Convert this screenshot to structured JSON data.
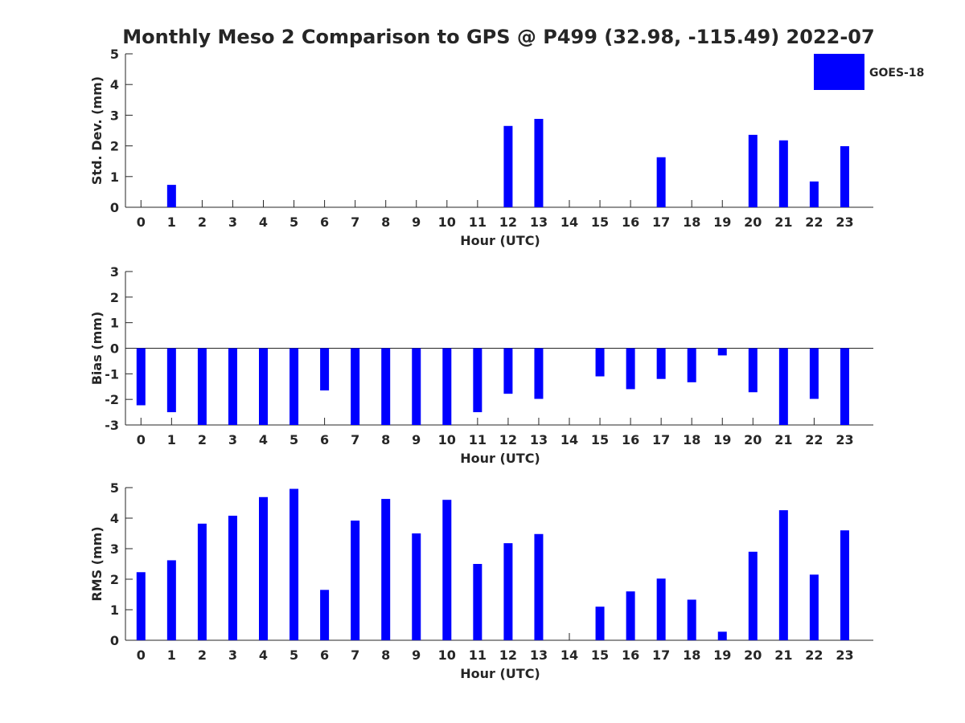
{
  "title": "Monthly Meso 2 Comparison to GPS @ P499 (32.98, -115.49) 2022-07",
  "legend": {
    "label": "GOES-18",
    "color": "#0000ff",
    "position": "top-right"
  },
  "chart_data": [
    {
      "type": "bar",
      "xlabel": "Hour (UTC)",
      "ylabel": "Std. Dev. (mm)",
      "ylim": [
        0,
        5
      ],
      "yticks": [
        0,
        1,
        2,
        3,
        4,
        5
      ],
      "categories": [
        "0",
        "1",
        "2",
        "3",
        "4",
        "5",
        "6",
        "7",
        "8",
        "9",
        "10",
        "11",
        "12",
        "13",
        "14",
        "15",
        "16",
        "17",
        "18",
        "19",
        "20",
        "21",
        "22",
        "23"
      ],
      "series": [
        {
          "name": "GOES-18",
          "color": "#0000ff",
          "values": [
            0,
            0.73,
            0,
            0,
            0,
            0,
            0,
            0,
            0,
            0,
            0,
            0,
            2.65,
            2.88,
            0,
            0,
            0,
            1.63,
            0,
            0,
            2.36,
            2.18,
            0.84,
            1.99
          ]
        }
      ]
    },
    {
      "type": "bar",
      "xlabel": "Hour (UTC)",
      "ylabel": "Bias (mm)",
      "ylim": [
        -3,
        3
      ],
      "yticks": [
        -3,
        -2,
        -1,
        0,
        1,
        2,
        3
      ],
      "categories": [
        "0",
        "1",
        "2",
        "3",
        "4",
        "5",
        "6",
        "7",
        "8",
        "9",
        "10",
        "11",
        "12",
        "13",
        "14",
        "15",
        "16",
        "17",
        "18",
        "19",
        "20",
        "21",
        "22",
        "23"
      ],
      "series": [
        {
          "name": "GOES-18",
          "color": "#0000ff",
          "values": [
            -2.23,
            -2.5,
            -3,
            -3,
            -3,
            -3,
            -1.65,
            -3,
            -3,
            -3,
            -3,
            -2.5,
            -1.78,
            -1.98,
            0,
            -1.1,
            -1.6,
            -1.2,
            -1.33,
            -0.28,
            -1.72,
            -3,
            -1.98,
            -3
          ]
        }
      ]
    },
    {
      "type": "bar",
      "xlabel": "Hour (UTC)",
      "ylabel": "RMS (mm)",
      "ylim": [
        0,
        5
      ],
      "yticks": [
        0,
        1,
        2,
        3,
        4,
        5
      ],
      "categories": [
        "0",
        "1",
        "2",
        "3",
        "4",
        "5",
        "6",
        "7",
        "8",
        "9",
        "10",
        "11",
        "12",
        "13",
        "14",
        "15",
        "16",
        "17",
        "18",
        "19",
        "20",
        "21",
        "22",
        "23"
      ],
      "series": [
        {
          "name": "GOES-18",
          "color": "#0000ff",
          "values": [
            2.23,
            2.62,
            3.82,
            4.08,
            4.69,
            4.96,
            1.65,
            3.92,
            4.63,
            3.5,
            4.6,
            2.5,
            3.18,
            3.48,
            0,
            1.1,
            1.6,
            2.02,
            1.33,
            0.28,
            2.9,
            4.26,
            2.15,
            3.6
          ]
        }
      ]
    }
  ]
}
